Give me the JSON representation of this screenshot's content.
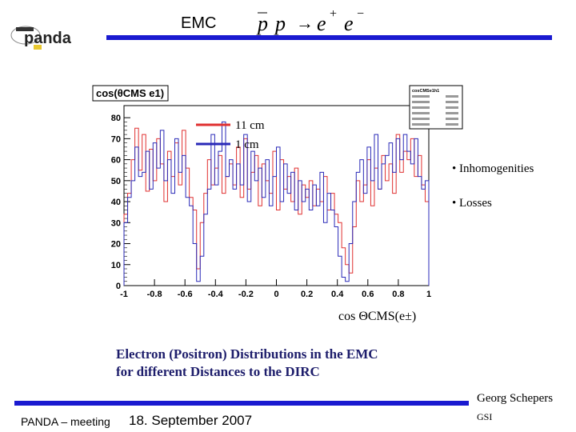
{
  "header": {
    "logo_text": "panda",
    "title": "EMC",
    "reaction": {
      "p1": "p",
      "p2": "p",
      "arrow": "→",
      "e": "e",
      "plus": "+",
      "minus": "−"
    }
  },
  "colors": {
    "accent": "#1a1ad0",
    "series_red": "#e03030",
    "series_blue": "#2a2ab8",
    "caption": "#1d1d6b"
  },
  "chart_data": {
    "type": "histogram",
    "title": "cos(θCMS e1)",
    "xlabel": "cos ΘCMS(e±)",
    "x_ticks": [
      -1,
      -0.8,
      -0.6,
      -0.4,
      -0.2,
      0,
      0.2,
      0.4,
      0.6,
      0.8,
      1
    ],
    "y_ticks": [
      0,
      10,
      20,
      30,
      40,
      50,
      60,
      70,
      80
    ],
    "xlim": [
      -1,
      1
    ],
    "ylim": [
      0,
      85
    ],
    "stats_box_title": "cosCMSe1h1",
    "series": [
      {
        "name": "11 cm",
        "color": "#e03030",
        "values": [
          34,
          44,
          60,
          75,
          55,
          72,
          45,
          65,
          50,
          70,
          58,
          40,
          64,
          52,
          68,
          48,
          74,
          56,
          42,
          36,
          8,
          30,
          44,
          60,
          48,
          56,
          62,
          44,
          52,
          58,
          48,
          66,
          42,
          70,
          46,
          54,
          62,
          38,
          58,
          50,
          44,
          64,
          36,
          60,
          46,
          52,
          40,
          56,
          34,
          48,
          42,
          50,
          38,
          46,
          40,
          52,
          36,
          44,
          34,
          30,
          18,
          10,
          6,
          28,
          50,
          40,
          48,
          60,
          38,
          56,
          46,
          62,
          50,
          58,
          44,
          72,
          54,
          64,
          60,
          70,
          52,
          62,
          48,
          40
        ]
      },
      {
        "name": "1 cm",
        "color": "#2a2ab8",
        "values": [
          30,
          42,
          50,
          66,
          52,
          54,
          64,
          46,
          68,
          56,
          74,
          50,
          60,
          44,
          70,
          54,
          62,
          42,
          38,
          20,
          2,
          14,
          34,
          46,
          72,
          48,
          64,
          78,
          52,
          60,
          46,
          58,
          48,
          72,
          40,
          64,
          50,
          56,
          42,
          60,
          38,
          52,
          66,
          40,
          58,
          44,
          54,
          36,
          50,
          40,
          46,
          36,
          48,
          38,
          54,
          30,
          44,
          36,
          28,
          14,
          4,
          2,
          20,
          40,
          54,
          60,
          44,
          66,
          50,
          72,
          46,
          58,
          62,
          68,
          54,
          70,
          60,
          72,
          64,
          58,
          70,
          52,
          46,
          50
        ]
      }
    ]
  },
  "bullets": [
    "• Inhomogenities",
    "• Losses"
  ],
  "caption": {
    "line1": "Electron (Positron) Distributions in the EMC",
    "line2": "for different Distances to the DIRC"
  },
  "footer": {
    "author": "Georg Schepers",
    "institute": "GSI",
    "meeting": "PANDA – meeting",
    "date": "18. September 2007"
  }
}
